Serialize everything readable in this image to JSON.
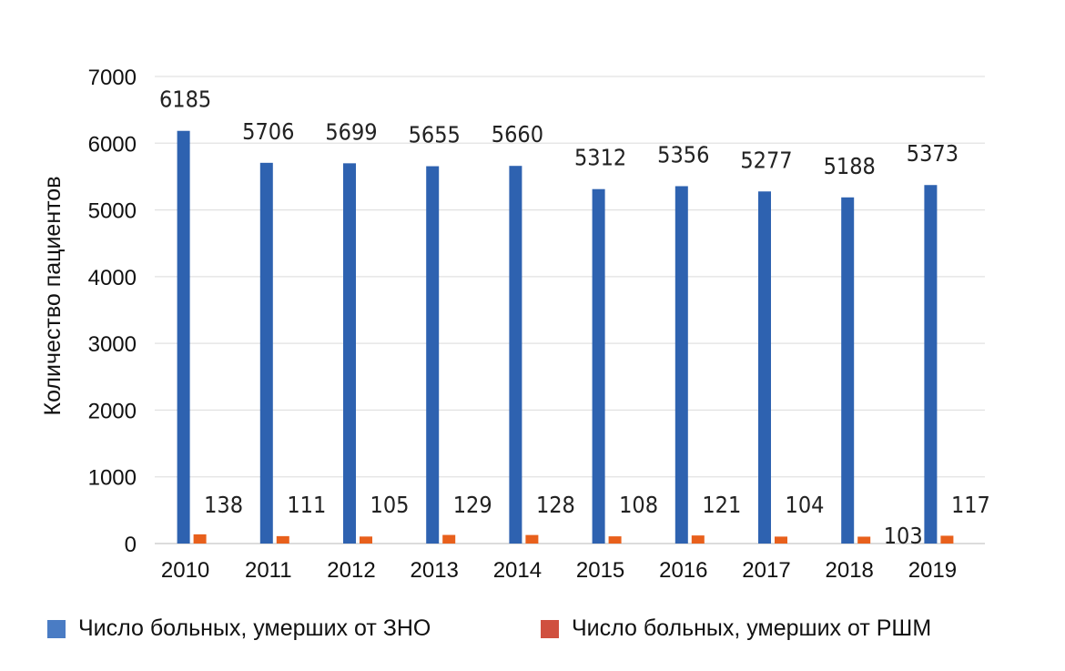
{
  "chart_data": {
    "type": "bar",
    "title": "",
    "xlabel": "",
    "ylabel": "Количество пациентов",
    "ylim": [
      0,
      7000
    ],
    "yticks": [
      0,
      1000,
      2000,
      3000,
      4000,
      5000,
      6000,
      7000
    ],
    "grid": true,
    "legend_position": "bottom",
    "categories": [
      "2010",
      "2011",
      "2012",
      "2013",
      "2014",
      "2015",
      "2016",
      "2017",
      "2018",
      "2019"
    ],
    "series": [
      {
        "name": "Число больных, умерших от ЗНО",
        "color": "#2E62B0",
        "values": [
          6185,
          5706,
          5699,
          5655,
          5660,
          5312,
          5356,
          5277,
          5188,
          5373
        ]
      },
      {
        "name": "Число больных, умерших от РШМ",
        "color": "#E8601C",
        "values": [
          138,
          111,
          105,
          129,
          128,
          108,
          121,
          104,
          103,
          117
        ]
      }
    ],
    "legend_swatch_colors": [
      "#4A7CC4",
      "#D0503F"
    ]
  }
}
